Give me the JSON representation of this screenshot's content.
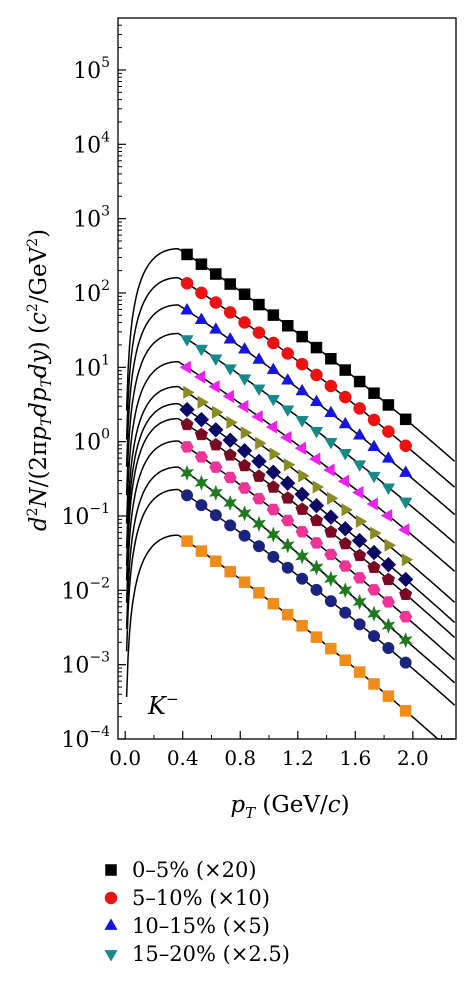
{
  "chart_data": {
    "type": "scatter",
    "particle_label": "K",
    "particle_charge": "−",
    "xlabel": {
      "var": "p",
      "sub": "T",
      "unit": " (GeV/",
      "unit_c": "c",
      "close": ")"
    },
    "ylabel": "d²N/(2πp_T dp_T dy) (c²/GeV²)",
    "x_ticks": [
      "0.0",
      "0.4",
      "0.8",
      "1.2",
      "1.6",
      "2.0"
    ],
    "xlim": [
      -0.05,
      2.3
    ],
    "yscale": "log",
    "ylim": [
      0.0001,
      500000
    ],
    "y_tick_exponents": [
      "−4",
      "−3",
      "−2",
      "−1",
      "0",
      "1",
      "2",
      "3",
      "4",
      "5"
    ],
    "grid": false,
    "legend_position": "below",
    "series": [
      {
        "name": "0–5% (×20)",
        "marker": "square",
        "color": "#000000",
        "y0": 330,
        "slope": 2.95
      },
      {
        "name": "5–10% (×10)",
        "marker": "circle",
        "color": "#ee1111",
        "y0": 135,
        "slope": 2.9
      },
      {
        "name": "10–15% (×5)",
        "marker": "triangle-up",
        "color": "#1515dd",
        "y0": 58,
        "slope": 2.9
      },
      {
        "name": "15–20% (×2.5)",
        "marker": "triangle-down",
        "color": "#168a8a",
        "y0": 24,
        "slope": 2.9
      },
      {
        "marker": "triangle-left",
        "color": "#ee22ee",
        "y0": 10,
        "slope": 2.9
      },
      {
        "marker": "triangle-right",
        "color": "#8b8b24",
        "y0": 4.6,
        "slope": 3.0
      },
      {
        "marker": "diamond",
        "color": "#0a0a66",
        "y0": 2.7,
        "slope": 3.05
      },
      {
        "marker": "pentagon",
        "color": "#7a0a22",
        "y0": 1.7,
        "slope": 3.05
      },
      {
        "marker": "hexagon",
        "color": "#ee3399",
        "y0": 0.85,
        "slope": 3.05
      },
      {
        "marker": "star",
        "color": "#1f7a1f",
        "y0": 0.38,
        "slope": 3.0
      },
      {
        "marker": "sphere",
        "color": "#1a237e",
        "y0": 0.19,
        "slope": 3.0
      },
      {
        "marker": "square",
        "color": "#f08c1a",
        "y0": 0.046,
        "slope": 3.05
      }
    ],
    "x": [
      0.43,
      0.53,
      0.63,
      0.73,
      0.83,
      0.93,
      1.03,
      1.13,
      1.23,
      1.33,
      1.43,
      1.53,
      1.63,
      1.73,
      1.83,
      1.95
    ],
    "fit_curves": "model fit per series",
    "legend_entries_shown": 4
  }
}
